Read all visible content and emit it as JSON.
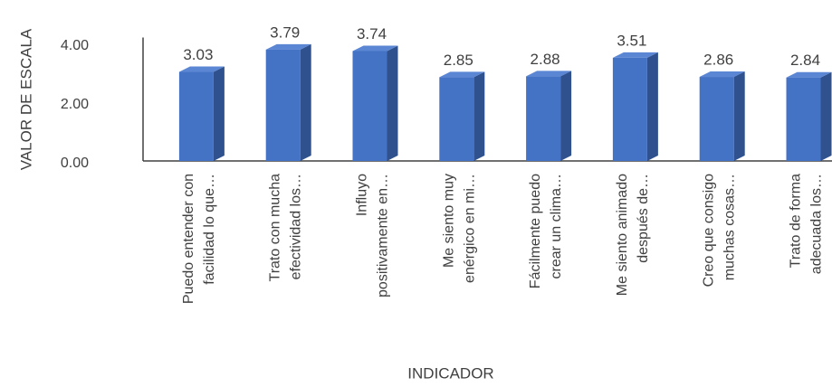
{
  "chart_data": {
    "type": "bar3d",
    "categories": [
      [
        "Puedo entender con",
        "facilidad lo que…"
      ],
      [
        "Trato con mucha",
        "efectividad los…"
      ],
      [
        "Influyo",
        "positivamente en…"
      ],
      [
        "Me siento muy",
        "enérgico en mi…"
      ],
      [
        "Fácilmente puedo",
        "crear un clima…"
      ],
      [
        "Me siento animado",
        "después de…"
      ],
      [
        "Creo que consigo",
        "muchas cosas…"
      ],
      [
        "Trato de forma",
        "adecuada los…"
      ]
    ],
    "values": [
      3.03,
      3.79,
      3.74,
      2.85,
      2.88,
      3.51,
      2.86,
      2.84
    ],
    "color": "#4472c4",
    "ylim": [
      0,
      4.2
    ],
    "yticks": [
      {
        "value": 0,
        "label": "0.00"
      },
      {
        "value": 2,
        "label": "2.00"
      },
      {
        "value": 4,
        "label": "4.00"
      }
    ],
    "ylabel": "VALOR DE ESCALA",
    "xlabel": "INDICADOR"
  }
}
